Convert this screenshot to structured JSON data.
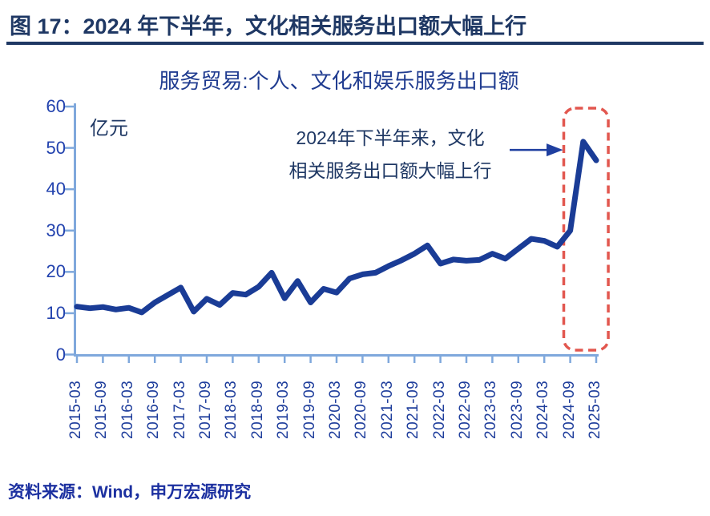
{
  "header": {
    "title": "图 17：2024 年下半年，文化相关服务出口额大幅上行"
  },
  "chart_data": {
    "type": "line",
    "title": "服务贸易:个人、文化和娱乐服务出口额",
    "unit_label": "亿元",
    "series_name": "服务贸易:个人、文化和娱乐服务出口额",
    "x": [
      "2015-03",
      "2015-06",
      "2015-09",
      "2015-12",
      "2016-03",
      "2016-06",
      "2016-09",
      "2016-12",
      "2017-03",
      "2017-06",
      "2017-09",
      "2017-12",
      "2018-03",
      "2018-06",
      "2018-09",
      "2018-12",
      "2019-03",
      "2019-06",
      "2019-09",
      "2019-12",
      "2020-03",
      "2020-06",
      "2020-09",
      "2020-12",
      "2021-03",
      "2021-06",
      "2021-09",
      "2021-12",
      "2022-03",
      "2022-06",
      "2022-09",
      "2022-12",
      "2023-03",
      "2023-06",
      "2023-09",
      "2023-12",
      "2024-03",
      "2024-06",
      "2024-09",
      "2024-12",
      "2025-03"
    ],
    "values": [
      11.6,
      11.2,
      11.5,
      10.9,
      11.3,
      10.2,
      12.6,
      14.4,
      16.2,
      10.4,
      13.5,
      12.0,
      14.9,
      14.5,
      16.4,
      19.8,
      13.6,
      17.8,
      12.6,
      15.9,
      15.0,
      18.4,
      19.4,
      19.8,
      21.4,
      22.8,
      24.4,
      26.4,
      22.0,
      23.0,
      22.7,
      22.9,
      24.4,
      23.2,
      25.6,
      28.0,
      27.5,
      26.1,
      30.0,
      51.5,
      47.0
    ],
    "ylim": [
      0,
      60
    ],
    "yticks": [
      0,
      10,
      20,
      30,
      40,
      50,
      60
    ],
    "xtick_labels": [
      "2015-03",
      "2015-09",
      "2016-03",
      "2016-09",
      "2017-03",
      "2017-09",
      "2018-03",
      "2018-09",
      "2019-03",
      "2019-09",
      "2020-03",
      "2020-09",
      "2021-03",
      "2021-09",
      "2022-03",
      "2022-09",
      "2023-03",
      "2023-09",
      "2024-03",
      "2024-09",
      "2025-03"
    ],
    "grid": false,
    "legend": "none",
    "annotation": {
      "line1": "2024年下半年来，文化",
      "line2": "相关服务出口额大幅上行",
      "arrow_target_value": 49.5
    },
    "highlight_box": {
      "from_quarter_index": 37.5,
      "to_quarter_index": 40.93,
      "period": "2024-09 至 2025-03"
    }
  },
  "footer": {
    "source": "资料来源：Wind，申万宏源研究"
  },
  "colors": {
    "header_navy": "#1f3864",
    "series_line": "#1a3c96",
    "axis_light_blue": "#7fa8dc",
    "highlight_red": "#e2574f",
    "tick_label_blue": "#2242ae",
    "source_blue": "#1c30a0"
  }
}
